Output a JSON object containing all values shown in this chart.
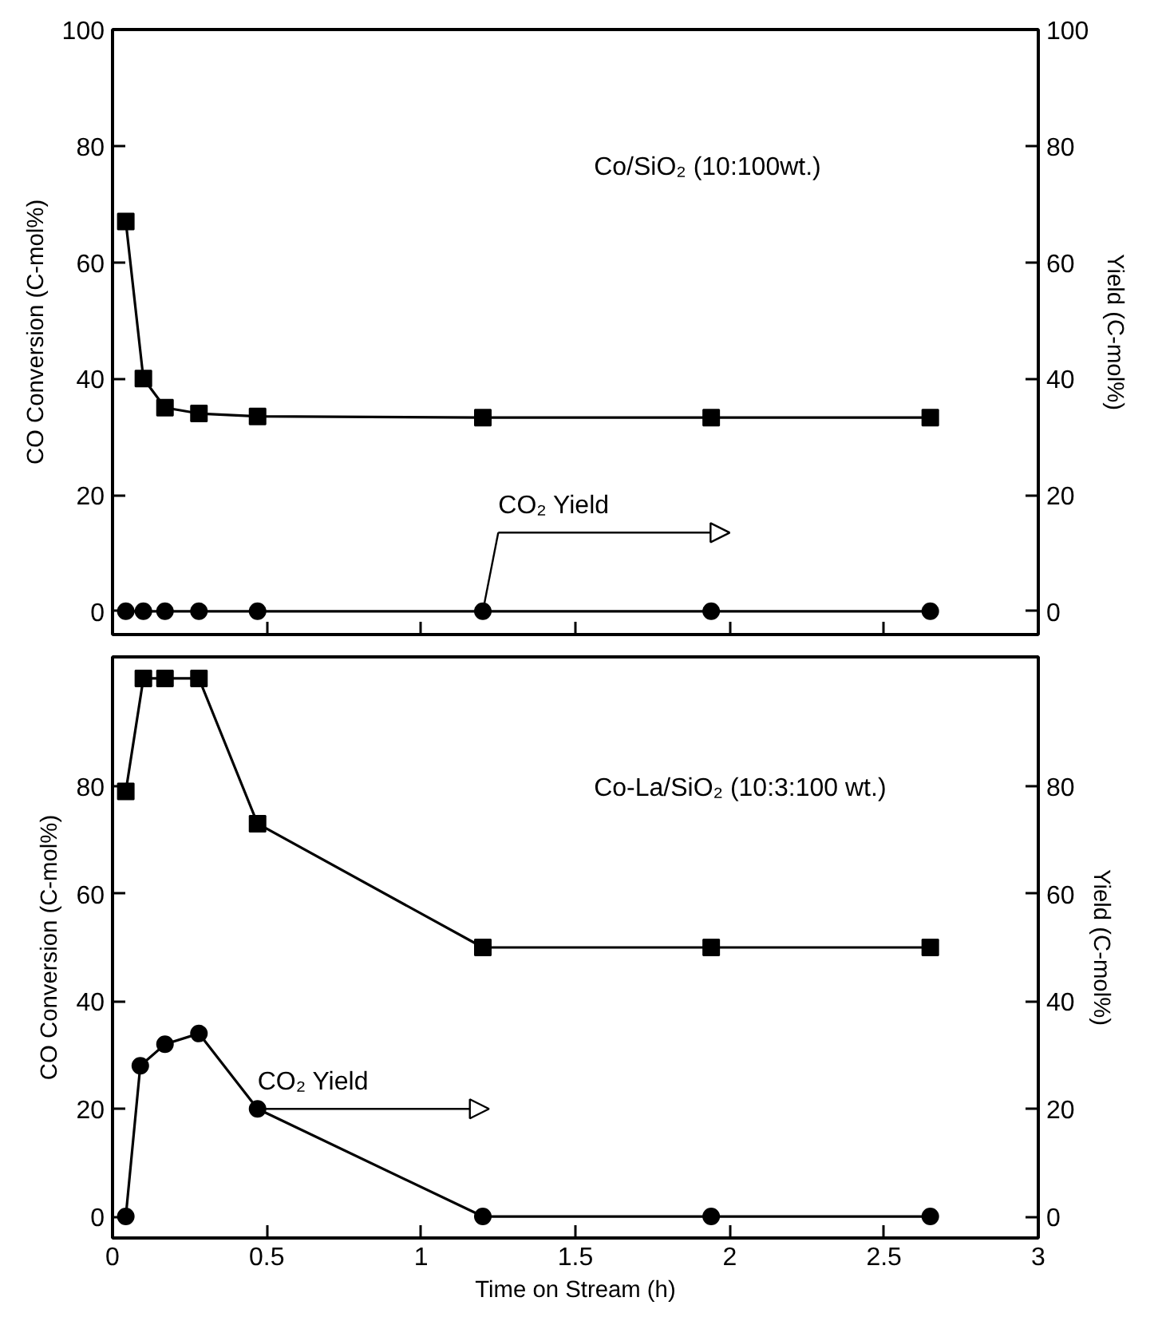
{
  "chart_data": [
    {
      "type": "line",
      "xlim": [
        0,
        3
      ],
      "xticks": [
        0,
        0.5,
        1,
        1.5,
        2,
        2.5,
        3
      ],
      "ylim": [
        -4,
        100
      ],
      "yticks": [
        0,
        20,
        40,
        60,
        80,
        100
      ],
      "y2lim": [
        -4,
        100
      ],
      "y2ticks": [
        0,
        20,
        40,
        60,
        80,
        100
      ],
      "ylabel": "CO Conversion (C-mol%)",
      "y2label": "Yield (C-mol%)",
      "tick_labels": "y",
      "grid": false,
      "annotations": [
        "Co/SiO₂ (10:100wt.)",
        {
          "text": "CO₂ Yield",
          "x": 1.2,
          "y": 0
        }
      ],
      "series": [
        {
          "color": "#000000",
          "marker": "square",
          "x": [
            0.043,
            0.1,
            0.17,
            0.28,
            0.47,
            1.2,
            1.94,
            2.65
          ],
          "values": [
            67,
            40,
            35,
            34,
            33.5,
            33.3,
            33.3,
            33.3
          ]
        },
        {
          "color": "#000000",
          "marker": "circle",
          "x": [
            0.043,
            0.1,
            0.17,
            0.28,
            0.47,
            1.2,
            1.94,
            2.65
          ],
          "values": [
            0,
            0,
            0,
            0,
            0,
            0,
            0,
            0
          ]
        }
      ]
    },
    {
      "type": "line",
      "xlim": [
        0,
        3
      ],
      "xticks": [
        0,
        0.5,
        1,
        1.5,
        2,
        2.5,
        3
      ],
      "ylim": [
        -4,
        104
      ],
      "yticks": [
        0,
        20,
        40,
        60,
        80
      ],
      "y2lim": [
        -4,
        104
      ],
      "y2ticks": [
        0,
        20,
        40,
        60,
        80
      ],
      "xlabel": "Time on Stream (h)",
      "ylabel": "CO Conversion (C-mol%)",
      "y2label": "Yield (C-mol%)",
      "grid": false,
      "annotations": [
        "Co-La/SiO₂ (10:3:100 wt.)",
        {
          "text": "CO₂ Yield",
          "x": 0.47,
          "y": 20
        }
      ],
      "series": [
        {
          "color": "#000000",
          "marker": "square",
          "x": [
            0.043,
            0.1,
            0.17,
            0.28,
            0.47,
            1.2,
            1.94,
            2.65
          ],
          "values": [
            79,
            100,
            100,
            100,
            73,
            50,
            50,
            50
          ]
        },
        {
          "color": "#000000",
          "marker": "circle",
          "x": [
            0.043,
            0.09,
            0.17,
            0.28,
            0.47,
            1.2,
            1.94,
            2.65
          ],
          "values": [
            0,
            28,
            32,
            34,
            20,
            0,
            0,
            0
          ]
        }
      ]
    }
  ]
}
